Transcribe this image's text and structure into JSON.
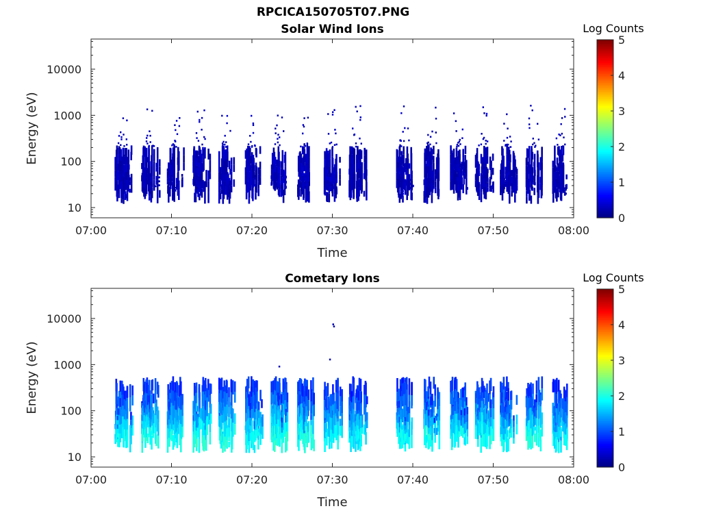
{
  "title": "RPCICA150705T07.PNG",
  "colorbar": {
    "label": "Log Counts",
    "ticks": [
      "0",
      "1",
      "2",
      "3",
      "4",
      "5"
    ],
    "min": 0,
    "max": 5,
    "colormap": "jet"
  },
  "chart_data": [
    {
      "type": "heatmap",
      "title": "Solar Wind Ions",
      "xlabel": "Time",
      "ylabel": "Energy (eV)",
      "x_ticks": [
        "07:00",
        "07:10",
        "07:20",
        "07:30",
        "07:40",
        "07:50",
        "08:00"
      ],
      "x_range": [
        "07:00",
        "08:00"
      ],
      "y_ticks": [
        "10",
        "100",
        "1000",
        "10000"
      ],
      "y_scale": "log",
      "y_range": [
        6,
        45000
      ],
      "color_range": [
        0,
        5
      ],
      "data_gap": [
        "07:34.5",
        "07:38"
      ],
      "bursts": [
        {
          "time_min": 3.6,
          "peak": 0.8
        },
        {
          "time_min": 6.9,
          "peak": 0.7
        },
        {
          "time_min": 10.1,
          "peak": 0.8
        },
        {
          "time_min": 13.3,
          "peak": 0.8
        },
        {
          "time_min": 16.5,
          "peak": 0.9
        },
        {
          "time_min": 19.8,
          "peak": 0.8
        },
        {
          "time_min": 23.0,
          "peak": 0.9
        },
        {
          "time_min": 26.3,
          "peak": 0.8
        },
        {
          "time_min": 29.6,
          "peak": 0.9
        },
        {
          "time_min": 32.7,
          "peak": 0.7
        },
        {
          "time_min": 38.6,
          "peak": 0.7
        },
        {
          "time_min": 42.0,
          "peak": 0.7
        },
        {
          "time_min": 45.3,
          "peak": 0.7
        },
        {
          "time_min": 48.4,
          "peak": 0.7
        },
        {
          "time_min": 51.5,
          "peak": 0.7
        },
        {
          "time_min": 54.7,
          "peak": 0.7
        },
        {
          "time_min": 58.0,
          "peak": 0.7
        }
      ]
    },
    {
      "type": "heatmap",
      "title": "Cometary Ions",
      "xlabel": "Time",
      "ylabel": "Energy (eV)",
      "x_ticks": [
        "07:00",
        "07:10",
        "07:20",
        "07:30",
        "07:40",
        "07:50",
        "08:00"
      ],
      "x_range": [
        "07:00",
        "08:00"
      ],
      "y_ticks": [
        "10",
        "100",
        "1000",
        "10000"
      ],
      "y_scale": "log",
      "y_range": [
        6,
        45000
      ],
      "color_range": [
        0,
        5
      ],
      "data_gap": [
        "07:34.5",
        "07:38"
      ],
      "bursts": [
        {
          "time_min": 3.6,
          "peak": 2.0
        },
        {
          "time_min": 6.9,
          "peak": 2.1
        },
        {
          "time_min": 10.1,
          "peak": 2.0
        },
        {
          "time_min": 13.3,
          "peak": 2.2
        },
        {
          "time_min": 16.5,
          "peak": 2.1
        },
        {
          "time_min": 19.8,
          "peak": 2.0
        },
        {
          "time_min": 23.0,
          "peak": 2.2
        },
        {
          "time_min": 26.3,
          "peak": 2.1
        },
        {
          "time_min": 29.6,
          "peak": 2.0
        },
        {
          "time_min": 32.7,
          "peak": 1.9
        },
        {
          "time_min": 38.6,
          "peak": 2.0
        },
        {
          "time_min": 42.0,
          "peak": 2.1
        },
        {
          "time_min": 45.3,
          "peak": 2.0
        },
        {
          "time_min": 48.4,
          "peak": 2.1
        },
        {
          "time_min": 51.5,
          "peak": 2.0
        },
        {
          "time_min": 54.7,
          "peak": 2.1
        },
        {
          "time_min": 58.0,
          "peak": 1.9
        }
      ]
    }
  ]
}
